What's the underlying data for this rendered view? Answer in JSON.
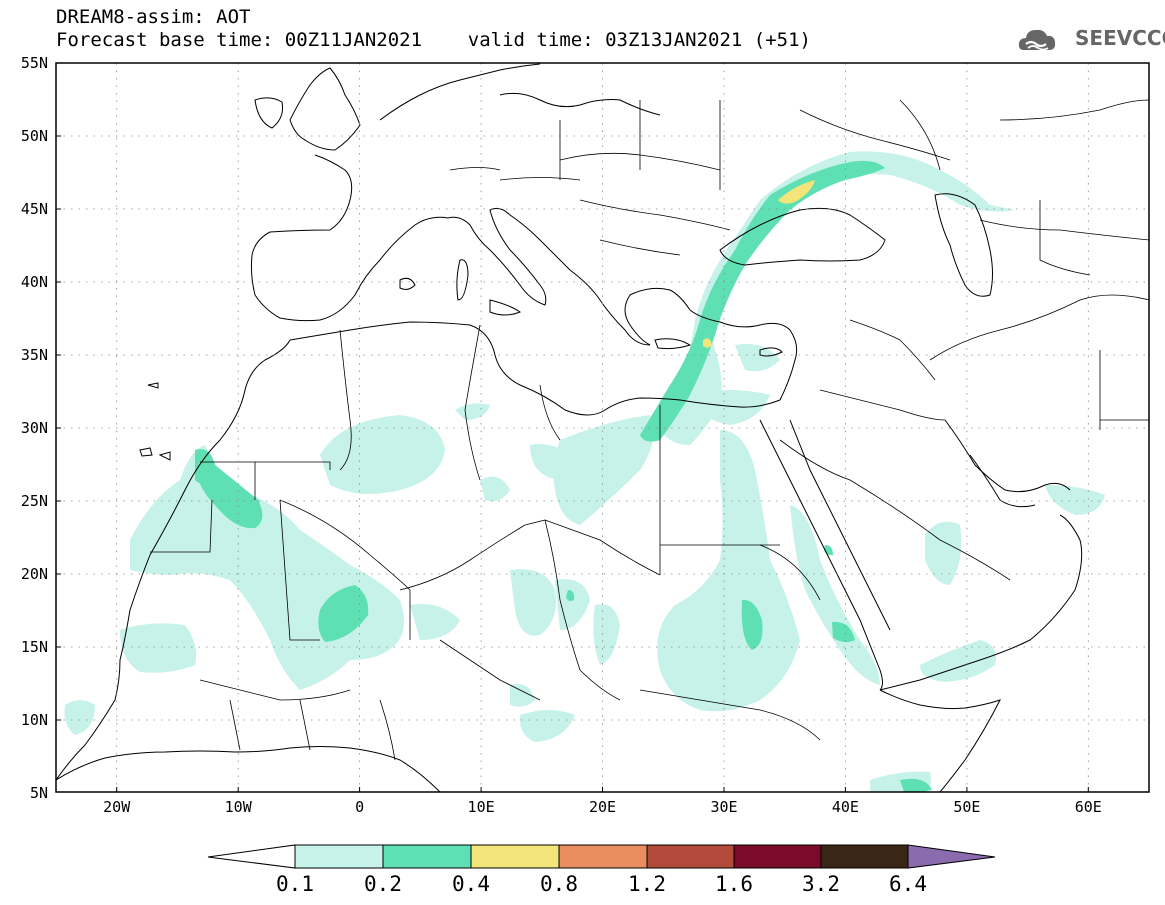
{
  "header": {
    "line1": "DREAM8-assim: AOT",
    "line2": "Forecast base time: 00Z11JAN2021    valid time: 03Z13JAN2021 (+51)"
  },
  "logo": {
    "text": "SEEVCCC",
    "icon": "cloud-logo-icon"
  },
  "map": {
    "lat_labels": [
      "55N",
      "50N",
      "45N",
      "40N",
      "35N",
      "30N",
      "25N",
      "20N",
      "15N",
      "10N",
      "5N"
    ],
    "lon_labels": [
      "20W",
      "10W",
      "0",
      "10E",
      "20E",
      "30E",
      "40E",
      "50E",
      "60E"
    ],
    "lat_values": [
      55,
      50,
      45,
      40,
      35,
      30,
      25,
      20,
      15,
      10,
      5
    ],
    "lon_values": [
      -20,
      -10,
      0,
      10,
      20,
      30,
      40,
      50,
      60
    ],
    "lon_range": [
      -25,
      65
    ],
    "lat_range": [
      5,
      55
    ]
  },
  "colorbar": {
    "labels": [
      "0.1",
      "0.2",
      "0.4",
      "0.8",
      "1.2",
      "1.6",
      "3.2",
      "6.4"
    ],
    "colors": [
      "#ffffff",
      "#c6f2ea",
      "#5ee0b4",
      "#f3e57a",
      "#ea8e60",
      "#b24b3b",
      "#7a0b2a",
      "#3a2614",
      "#8a6cae"
    ]
  }
}
